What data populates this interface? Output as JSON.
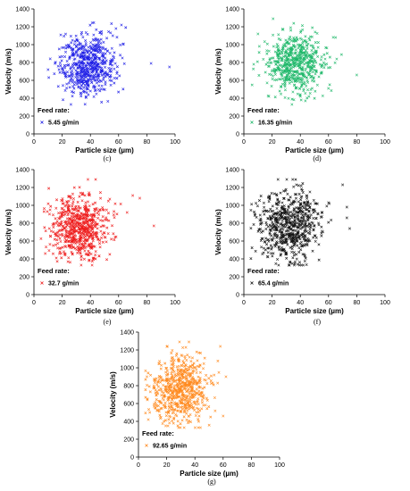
{
  "chart_data": [
    {
      "type": "scatter",
      "label": "(c)",
      "xlabel": "Particle size (µm)",
      "ylabel": "Velocity (m/s)",
      "xlim": [
        0,
        100
      ],
      "ylim": [
        0,
        1400
      ],
      "xticks": [
        "0",
        "20",
        "40",
        "60",
        "80",
        "100"
      ],
      "yticks": [
        "0",
        "200",
        "400",
        "600",
        "800",
        "1000",
        "1200",
        "1400"
      ],
      "legend_title": "Feed rate:",
      "series_name": "5.45 g/min",
      "color": "#1f1fe6",
      "n_points": 600,
      "x_mean": 38,
      "x_sd": 10,
      "y_mean": 780,
      "y_sd": 170,
      "outliers": [
        [
          83,
          790
        ],
        [
          96,
          750
        ],
        [
          10,
          720
        ],
        [
          62,
          1220
        ]
      ]
    },
    {
      "type": "scatter",
      "label": "(d)",
      "xlabel": "Particle size (µm)",
      "ylabel": "Velocity (m/s)",
      "xlim": [
        0,
        100
      ],
      "ylim": [
        0,
        1400
      ],
      "xticks": [
        "0",
        "20",
        "40",
        "60",
        "80",
        "100"
      ],
      "yticks": [
        "0",
        "200",
        "400",
        "600",
        "800",
        "1000",
        "1200",
        "1400"
      ],
      "legend_title": "Feed rate:",
      "series_name": "16.35 g/min",
      "color": "#1fb86a",
      "n_points": 600,
      "x_mean": 37,
      "x_sd": 10,
      "y_mean": 790,
      "y_sd": 170,
      "outliers": [
        [
          80,
          660
        ],
        [
          7,
          780
        ],
        [
          10,
          1120
        ],
        [
          65,
          1080
        ]
      ]
    },
    {
      "type": "scatter",
      "label": "(e)",
      "xlabel": "Particle size (µm)",
      "ylabel": "Velocity (m/s)",
      "xlim": [
        0,
        100
      ],
      "ylim": [
        0,
        1400
      ],
      "xticks": [
        "0",
        "20",
        "40",
        "60",
        "80",
        "100"
      ],
      "yticks": [
        "0",
        "200",
        "400",
        "600",
        "800",
        "1000",
        "1200",
        "1400"
      ],
      "legend_title": "Feed rate:",
      "series_name": "32.7 g/min",
      "color": "#ee1c1c",
      "n_points": 650,
      "x_mean": 32,
      "x_sd": 10,
      "y_mean": 760,
      "y_sd": 180,
      "outliers": [
        [
          85,
          770
        ],
        [
          75,
          1080
        ],
        [
          70,
          1110
        ],
        [
          66,
          920
        ],
        [
          8,
          460
        ]
      ]
    },
    {
      "type": "scatter",
      "label": "(f)",
      "xlabel": "Particle size (µm)",
      "ylabel": "Velocity (m/s)",
      "xlim": [
        0,
        100
      ],
      "ylim": [
        0,
        1400
      ],
      "xticks": [
        "0",
        "20",
        "40",
        "60",
        "80",
        "100"
      ],
      "yticks": [
        "0",
        "200",
        "400",
        "600",
        "800",
        "1000",
        "1200",
        "1400"
      ],
      "legend_title": "Feed rate:",
      "series_name": "65.4 g/min",
      "color": "#111111",
      "n_points": 650,
      "x_mean": 33,
      "x_sd": 11,
      "y_mean": 780,
      "y_sd": 200,
      "outliers": [
        [
          73,
          980
        ],
        [
          73,
          860
        ],
        [
          75,
          740
        ],
        [
          70,
          1230
        ],
        [
          60,
          1030
        ]
      ]
    },
    {
      "type": "scatter",
      "label": "(g)",
      "xlabel": "Particle size (µm)",
      "ylabel": "Velocity (m/s)",
      "xlim": [
        0,
        100
      ],
      "ylim": [
        0,
        1400
      ],
      "xticks": [
        "0",
        "20",
        "40",
        "60",
        "80",
        "100"
      ],
      "yticks": [
        "0",
        "200",
        "400",
        "600",
        "800",
        "1000",
        "1200",
        "1400"
      ],
      "legend_title": "Feed rate:",
      "series_name": "92.65 g/min",
      "color": "#ff8a1f",
      "n_points": 650,
      "x_mean": 30,
      "x_sd": 10,
      "y_mean": 760,
      "y_sd": 190,
      "outliers": [
        [
          62,
          900
        ],
        [
          60,
          460
        ],
        [
          8,
          500
        ],
        [
          6,
          900
        ],
        [
          58,
          1240
        ]
      ]
    }
  ]
}
